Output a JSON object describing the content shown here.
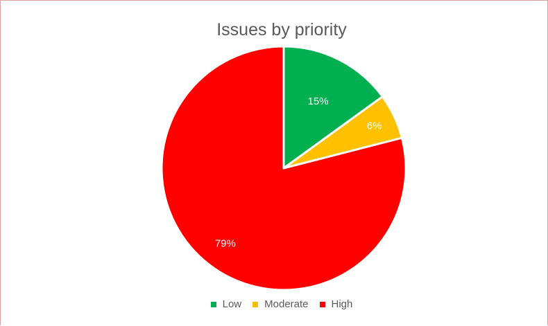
{
  "chart_data": {
    "type": "pie",
    "title": "Issues by priority",
    "categories": [
      "Low",
      "Moderate",
      "High"
    ],
    "values": [
      15,
      6,
      79
    ],
    "labels": [
      "15%",
      "6%",
      "79%"
    ],
    "colors": [
      "#00b050",
      "#ffc000",
      "#ff0000"
    ],
    "legend_position": "bottom"
  }
}
